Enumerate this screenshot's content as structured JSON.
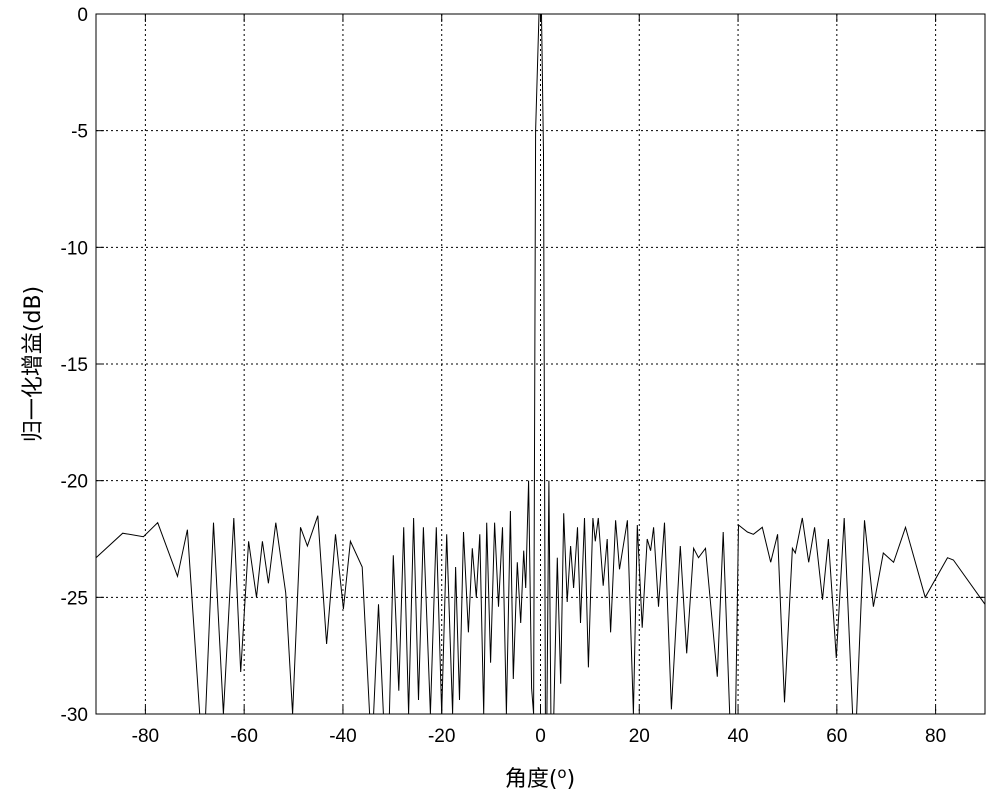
{
  "chart_data": {
    "type": "line",
    "title": "",
    "xlabel": "角度(",
    "xlabel_sup": "o",
    "xlabel_close": ")",
    "ylabel": "归一化增益(dB)",
    "xlim": [
      -90,
      90
    ],
    "ylim": [
      -30,
      0
    ],
    "xticks": [
      -80,
      -60,
      -40,
      -20,
      0,
      20,
      40,
      60,
      80
    ],
    "yticks": [
      0,
      -5,
      -10,
      -15,
      -20,
      -25,
      -30
    ],
    "grid": true,
    "line_color": "#000000",
    "series": [
      {
        "x": [
          -90,
          -84.6,
          -80.4,
          -77.5,
          -73.5,
          -71.5,
          -69,
          -67.8,
          -66.2,
          -64.2,
          -62.1,
          -60.7,
          -59.1,
          -57.5,
          -56.3,
          -55.1,
          -53.6,
          -51.6,
          -50.2,
          -48.6,
          -47.2,
          -45.1,
          -43.3,
          -41.5,
          -39.9,
          -38.5,
          -36.1,
          -34.6,
          -33.8,
          -32.8,
          -31.8,
          -30.6,
          -29.8,
          -28.7,
          -27.7,
          -26.7,
          -25.7,
          -24.7,
          -23.7,
          -22.3,
          -21.1,
          -20,
          -19,
          -17.8,
          -17.2,
          -16.4,
          -15.6,
          -14.6,
          -13.8,
          -13,
          -12.3,
          -11.5,
          -10.9,
          -10.1,
          -9.3,
          -8.5,
          -7.7,
          -6.9,
          -6.1,
          -5.5,
          -4.7,
          -4,
          -3.4,
          -3,
          -2.4,
          -1.8,
          -1.4,
          -1.0,
          -0.3,
          0.2,
          0.6,
          1.0,
          1.3,
          1.7,
          2.1,
          2.7,
          3.4,
          4.1,
          4.7,
          5.4,
          6.1,
          6.7,
          7.5,
          8.1,
          8.9,
          9.7,
          10.6,
          11.1,
          11.7,
          12.7,
          13.5,
          14.2,
          15.2,
          16,
          17.6,
          18.8,
          19.6,
          20.6,
          21.6,
          22.3,
          22.9,
          23.9,
          25.1,
          26.5,
          28.3,
          29.6,
          31,
          32,
          33.4,
          35.8,
          37,
          38.3,
          39.5,
          40.1,
          41.9,
          43.1,
          44.9,
          46.6,
          48,
          49.4,
          51,
          51.6,
          53,
          54.3,
          55.5,
          57.1,
          58.3,
          59.9,
          61.5,
          63.2,
          64,
          65.6,
          67.4,
          69.4,
          71.5,
          73.9,
          77.9,
          82.4,
          83.6,
          90
        ],
        "y": [
          -23.3,
          -22.25,
          -22.4,
          -21.8,
          -24.1,
          -22.1,
          -30,
          -30,
          -21.8,
          -30,
          -21.6,
          -28.2,
          -22.6,
          -25,
          -22.6,
          -24.4,
          -21.8,
          -24.8,
          -30,
          -22,
          -22.8,
          -21.5,
          -27,
          -22.3,
          -25.5,
          -22.6,
          -23.7,
          -30,
          -30,
          -25.3,
          -30,
          -30,
          -23.2,
          -29,
          -22,
          -30,
          -21.6,
          -29.4,
          -22,
          -30,
          -22,
          -30,
          -22.3,
          -30,
          -23.7,
          -29.4,
          -22.2,
          -26.5,
          -22.9,
          -25,
          -22.3,
          -30,
          -21.8,
          -27.8,
          -21.8,
          -25.4,
          -22,
          -30,
          -21.3,
          -28.5,
          -23.5,
          -26.1,
          -23,
          -24.6,
          -20,
          -28.9,
          -30,
          -5,
          0,
          0,
          -6,
          -30,
          -30,
          -20,
          -30,
          -30,
          -23.3,
          -28.7,
          -21.4,
          -25.2,
          -22.8,
          -24.6,
          -22,
          -26.1,
          -21.6,
          -28,
          -21.6,
          -22.6,
          -21.6,
          -24.5,
          -22.5,
          -26.5,
          -21.7,
          -23.8,
          -21.7,
          -30,
          -21.9,
          -26.3,
          -22.5,
          -23,
          -22,
          -25.4,
          -21.8,
          -29.8,
          -22.8,
          -27.4,
          -22.9,
          -23.3,
          -22.9,
          -28.4,
          -22.2,
          -30,
          -30,
          -21.9,
          -22.2,
          -22.3,
          -22,
          -23.5,
          -22.3,
          -29.5,
          -22.9,
          -23.1,
          -21.6,
          -23.5,
          -22,
          -25.1,
          -22.5,
          -27.6,
          -21.6,
          -30,
          -30,
          -21.7,
          -25.4,
          -23.1,
          -23.5,
          -22,
          -25,
          -23.3,
          -23.4,
          -25.3
        ]
      }
    ]
  }
}
